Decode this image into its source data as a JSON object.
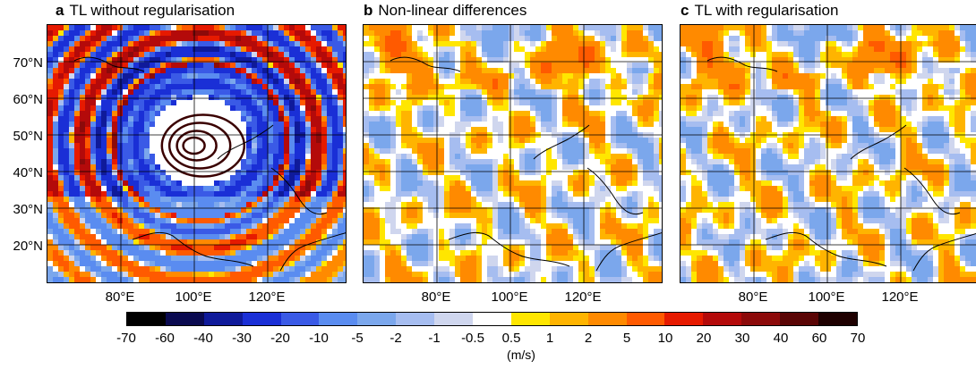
{
  "panels": [
    {
      "letter": "a",
      "title": "TL without regularisation",
      "kind": "unreg"
    },
    {
      "letter": "b",
      "title": "Non-linear differences",
      "kind": "nonlin"
    },
    {
      "letter": "c",
      "title": "TL with regularisation",
      "kind": "reg"
    }
  ],
  "lat_labels": [
    "70°N",
    "60°N",
    "50°N",
    "40°N",
    "30°N",
    "20°N"
  ],
  "lon_labels": [
    "80°E",
    "100°E",
    "120°E"
  ],
  "colorbar": {
    "ticks": [
      "-70",
      "-60",
      "-40",
      "-30",
      "-20",
      "-10",
      "-5",
      "-2",
      "-1",
      "-0.5",
      "0.5",
      "1",
      "2",
      "5",
      "10",
      "20",
      "30",
      "40",
      "60",
      "70"
    ],
    "colors": [
      "#000000",
      "#0a0a50",
      "#0f1a9a",
      "#1a2fd6",
      "#3a5ae6",
      "#5a8cf0",
      "#7ba7ec",
      "#a6bdf0",
      "#cfd6ee",
      "#ffffff",
      "#ffe600",
      "#ffb400",
      "#ff8a00",
      "#ff5a00",
      "#e61a00",
      "#b40a0a",
      "#8c0a0a",
      "#5a0505",
      "#1e0000"
    ],
    "units": "(m/s)"
  }
}
